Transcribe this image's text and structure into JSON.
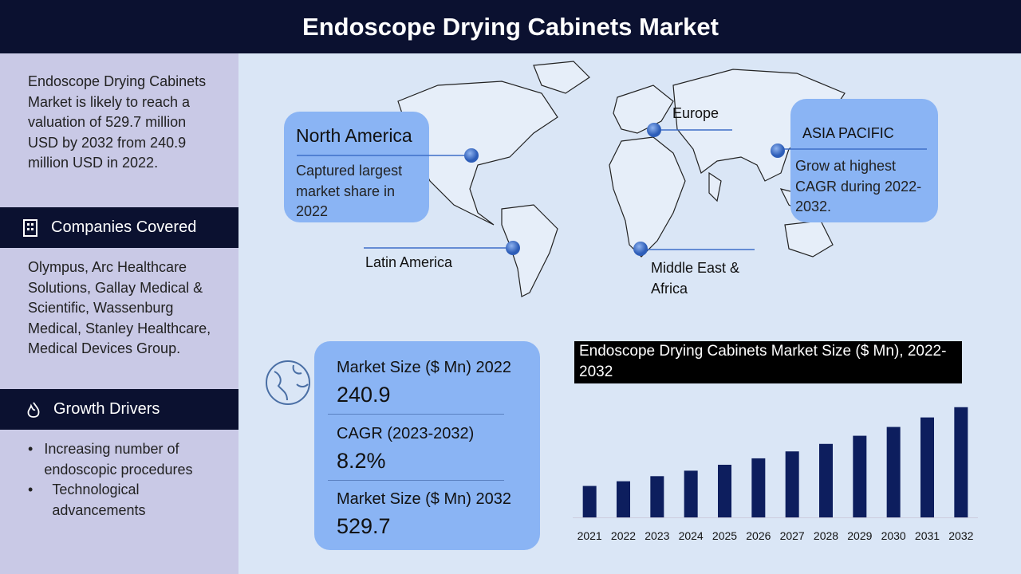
{
  "header": {
    "title": "Endoscope Drying Cabinets Market"
  },
  "sidebar": {
    "intro": "Endoscope Drying Cabinets Market is likely to reach a valuation of 529.7 million USD by 2032 from 240.9 million USD in 2022.",
    "companies_heading": "Companies Covered",
    "companies": "Olympus, Arc Healthcare Solutions, Gallay Medical & Scientific, Wassenburg Medical, Stanley Healthcare, Medical Devices Group.",
    "drivers_heading": "Growth Drivers",
    "drivers": [
      "Increasing number of endoscopic procedures",
      "Technological advancements"
    ]
  },
  "map": {
    "regions": [
      {
        "name": "North America",
        "note": "Captured largest market share in 2022"
      },
      {
        "name": "Europe"
      },
      {
        "name": "ASIA PACIFIC",
        "note": "Grow at highest CAGR during 2022-2032."
      },
      {
        "name": "Latin America"
      },
      {
        "name": "Middle East & Africa"
      }
    ]
  },
  "stats": [
    {
      "label": "Market Size ($ Mn) 2022",
      "value": "240.9"
    },
    {
      "label": "CAGR (2023-2032)",
      "value": "8.2%"
    },
    {
      "label": "Market Size ($ Mn) 2032",
      "value": "529.7"
    }
  ],
  "chart_data": {
    "type": "bar",
    "title": "Endoscope Drying Cabinets Market Size ($ Mn), 2022-2032",
    "categories": [
      "2021",
      "2022",
      "2023",
      "2024",
      "2025",
      "2026",
      "2027",
      "2028",
      "2029",
      "2030",
      "2031",
      "2032"
    ],
    "values": [
      222.6,
      240.9,
      260.7,
      282.1,
      305.2,
      330.2,
      357.3,
      386.6,
      418.3,
      452.6,
      489.7,
      529.7
    ],
    "color": "#0d1e5e",
    "ylim": [
      100,
      560
    ]
  }
}
